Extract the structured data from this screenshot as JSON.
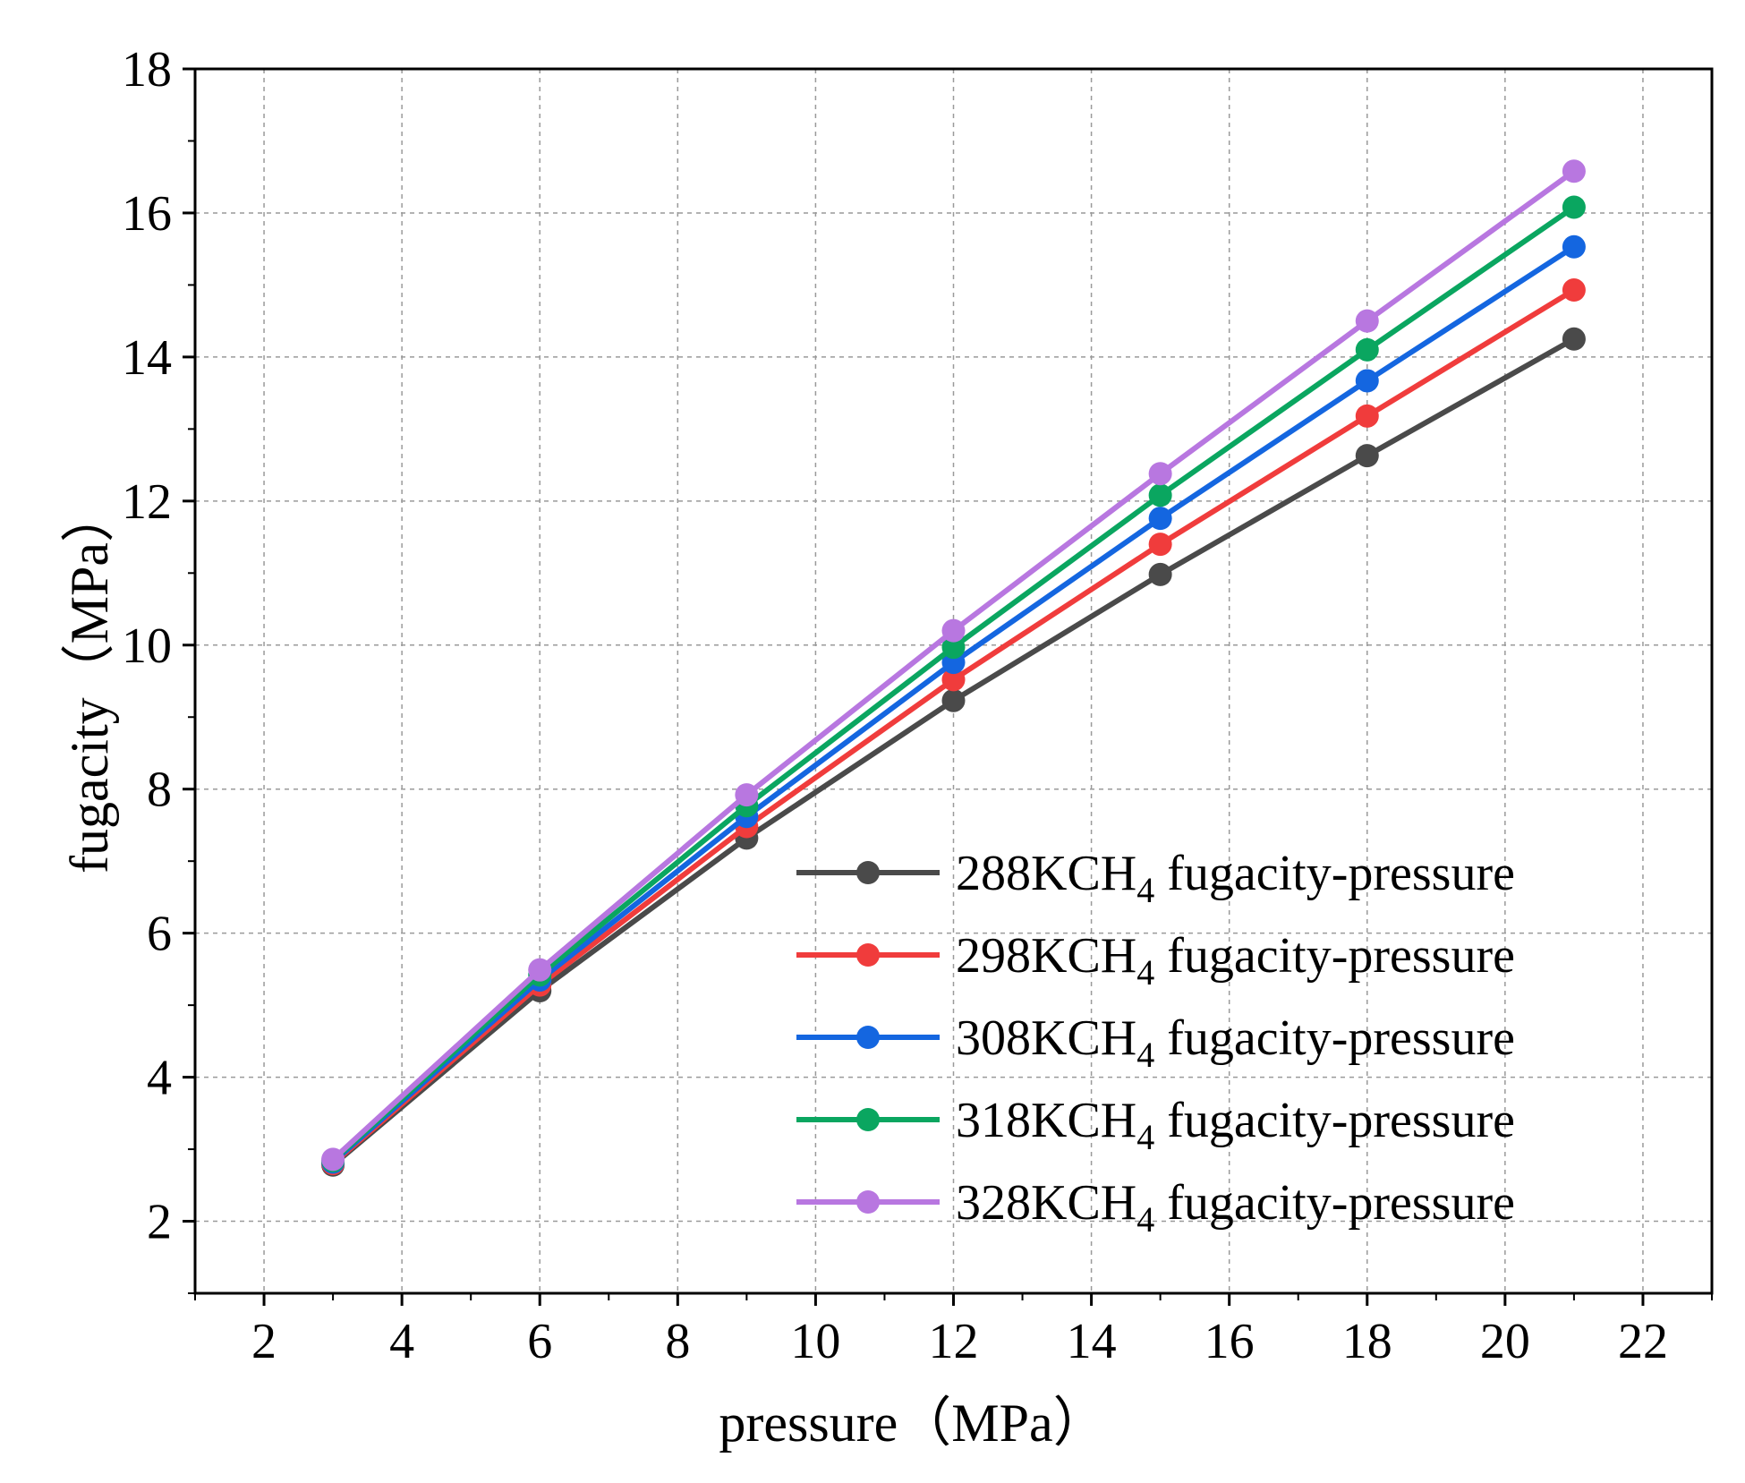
{
  "chart_data": {
    "type": "line",
    "xlabel": "pressure（MPa）",
    "ylabel": "fugacity（MPa）",
    "xlim": [
      1,
      23
    ],
    "ylim": [
      1,
      18
    ],
    "xticks": [
      2,
      4,
      6,
      8,
      10,
      12,
      14,
      16,
      18,
      20,
      22
    ],
    "yticks": [
      2,
      4,
      6,
      8,
      10,
      12,
      14,
      16,
      18
    ],
    "grid": true,
    "legend_position": "bottom-right",
    "x": [
      3,
      6,
      9,
      12,
      15,
      18,
      21
    ],
    "series": [
      {
        "name_main": "288KCH",
        "name_sub": "4",
        "name_tail": " fugacity-pressure",
        "color": "#4a4a4a",
        "values": [
          2.78,
          5.2,
          7.32,
          9.23,
          10.98,
          12.63,
          14.25
        ]
      },
      {
        "name_main": "298KCH",
        "name_sub": "4",
        "name_tail": " fugacity-pressure",
        "color": "#f03c3c",
        "values": [
          2.8,
          5.28,
          7.48,
          9.52,
          11.4,
          13.18,
          14.93
        ]
      },
      {
        "name_main": "308KCH",
        "name_sub": "4",
        "name_tail": " fugacity-pressure",
        "color": "#1466e0",
        "values": [
          2.82,
          5.35,
          7.62,
          9.76,
          11.76,
          13.67,
          15.53
        ]
      },
      {
        "name_main": "318KCH",
        "name_sub": "4",
        "name_tail": " fugacity-pressure",
        "color": "#0aa660",
        "values": [
          2.84,
          5.42,
          7.77,
          9.97,
          12.08,
          14.1,
          16.08
        ]
      },
      {
        "name_main": "328KCH",
        "name_sub": "4",
        "name_tail": " fugacity-pressure",
        "color": "#b877e0",
        "values": [
          2.86,
          5.49,
          7.92,
          10.2,
          12.38,
          14.5,
          16.58
        ]
      }
    ]
  }
}
